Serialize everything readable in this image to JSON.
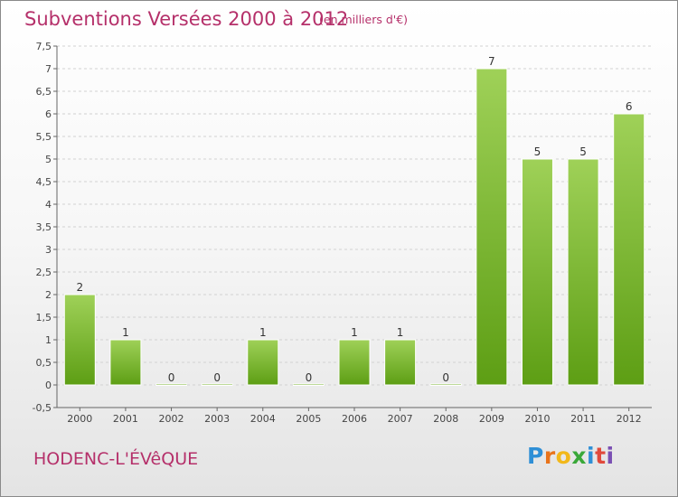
{
  "header": {
    "title": "Subventions Versées 2000 à 2012",
    "subtitle": "(en milliers d'€)"
  },
  "footer": {
    "place": "HODENC-L'ÉVêQUE",
    "logo": {
      "letters": [
        "P",
        "r",
        "o",
        "x",
        "i",
        "t",
        "i"
      ],
      "colors": [
        "#2f8fd6",
        "#e8731a",
        "#f2b81a",
        "#3aa839",
        "#2f8fd6",
        "#e04a3c",
        "#7a4fb3"
      ]
    }
  },
  "colors": {
    "accent": "#b5306a",
    "bar_top": "#9fd158",
    "bar_bottom": "#5d9e14"
  },
  "chart_data": {
    "type": "bar",
    "categories": [
      "2000",
      "2001",
      "2002",
      "2003",
      "2004",
      "2005",
      "2006",
      "2007",
      "2008",
      "2009",
      "2010",
      "2011",
      "2012"
    ],
    "values": [
      2,
      1,
      0,
      0,
      1,
      0,
      1,
      1,
      0,
      7,
      5,
      5,
      6
    ],
    "ylim": [
      -0.5,
      7.5
    ],
    "yticks": [
      -0.5,
      0,
      0.5,
      1,
      1.5,
      2,
      2.5,
      3,
      3.5,
      4,
      4.5,
      5,
      5.5,
      6,
      6.5,
      7,
      7.5
    ],
    "ytick_labels": [
      "-0,5",
      "0",
      "0,5",
      "1",
      "1,5",
      "2",
      "2,5",
      "3",
      "3,5",
      "4",
      "4,5",
      "5",
      "5,5",
      "6",
      "6,5",
      "7",
      "7,5"
    ],
    "grid": "horizontal-dashed"
  }
}
